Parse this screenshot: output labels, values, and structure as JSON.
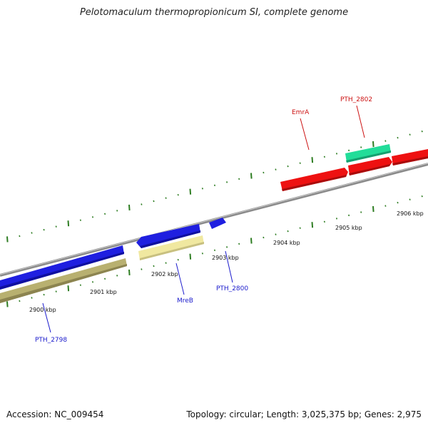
{
  "title": "Pelotomaculum thermopropionicum SI, complete genome",
  "footer": {
    "accession": "Accession: NC_009454",
    "summary": "Topology: circular; Length: 3,025,375 bp; Genes: 2,975"
  },
  "colors": {
    "backbone": "#8a8a8a",
    "tick": "#2e7d22",
    "label_blue": "#1a1acc",
    "label_red": "#cc1111",
    "gene_blue": "#1f1fe0",
    "gene_red": "#ee1111",
    "gene_green": "#22dd99",
    "gene_khaki": "#b8b070",
    "gene_paleyellow": "#f0e8a0"
  },
  "ticks": [
    "2900 kbp",
    "2901 kbp",
    "2902 kbp",
    "2903 kbp",
    "2904 kbp",
    "2905 kbp",
    "2906 kbp"
  ],
  "genes": [
    {
      "label": "PTH_2798",
      "color": "label_blue"
    },
    {
      "label": "MreB",
      "color": "label_blue"
    },
    {
      "label": "PTH_2800",
      "color": "label_blue"
    },
    {
      "label": "EmrA",
      "color": "label_red"
    },
    {
      "label": "PTH_2802",
      "color": "label_red"
    }
  ]
}
